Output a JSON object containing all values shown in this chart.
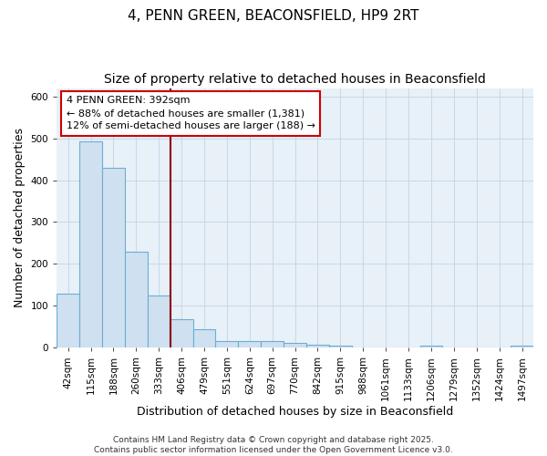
{
  "title": "4, PENN GREEN, BEACONSFIELD, HP9 2RT",
  "subtitle": "Size of property relative to detached houses in Beaconsfield",
  "xlabel": "Distribution of detached houses by size in Beaconsfield",
  "ylabel": "Number of detached properties",
  "categories": [
    "42sqm",
    "115sqm",
    "188sqm",
    "260sqm",
    "333sqm",
    "406sqm",
    "479sqm",
    "551sqm",
    "624sqm",
    "697sqm",
    "770sqm",
    "842sqm",
    "915sqm",
    "988sqm",
    "1061sqm",
    "1133sqm",
    "1206sqm",
    "1279sqm",
    "1352sqm",
    "1424sqm",
    "1497sqm"
  ],
  "values": [
    128,
    493,
    430,
    229,
    124,
    68,
    44,
    16,
    16,
    15,
    11,
    6,
    5,
    1,
    1,
    1,
    4,
    0,
    0,
    0,
    4
  ],
  "bar_color": "#cfe0f0",
  "bar_edge_color": "#6baed6",
  "vline_x_index": 5,
  "vline_color": "#8b0000",
  "annotation_text": "4 PENN GREEN: 392sqm\n← 88% of detached houses are smaller (1,381)\n12% of semi-detached houses are larger (188) →",
  "annotation_box_color": "#ffffff",
  "annotation_box_edge": "#cc0000",
  "plot_bg_color": "#e8f0f8",
  "figure_bg_color": "#ffffff",
  "grid_color": "#c8d8e8",
  "footer": "Contains HM Land Registry data © Crown copyright and database right 2025.\nContains public sector information licensed under the Open Government Licence v3.0.",
  "ylim": [
    0,
    620
  ],
  "title_fontsize": 11,
  "subtitle_fontsize": 10,
  "xlabel_fontsize": 9,
  "ylabel_fontsize": 9,
  "tick_fontsize": 7.5,
  "footer_fontsize": 6.5
}
